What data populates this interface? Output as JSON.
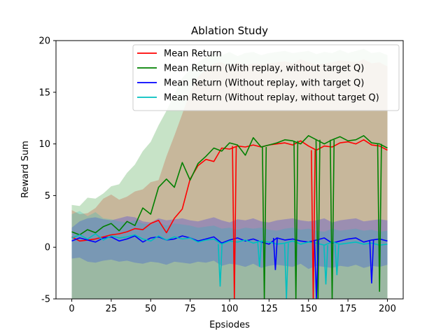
{
  "chart_data": {
    "type": "line",
    "title": "Ablation Study",
    "xlabel": "Epsiodes",
    "ylabel": "Reward Sum",
    "xlim": [
      -10,
      210
    ],
    "ylim": [
      -5,
      20
    ],
    "x_ticks": [
      0,
      25,
      50,
      75,
      100,
      125,
      150,
      175,
      200
    ],
    "y_ticks": [
      -5,
      0,
      5,
      10,
      15,
      20
    ],
    "grid": false,
    "legend_position": "top-right",
    "x_start": 0,
    "x_step": 5,
    "series": [
      {
        "name": "Mean Return",
        "color": "#ff0000",
        "band_color": "#ff0000",
        "values": [
          1.0,
          0.6,
          0.7,
          0.8,
          1.0,
          1.2,
          1.3,
          1.5,
          1.8,
          1.7,
          2.3,
          2.6,
          1.4,
          2.8,
          3.7,
          6.6,
          7.9,
          8.5,
          8.3,
          9.6,
          9.5,
          9.8,
          9.7,
          9.9,
          9.7,
          9.9,
          10.0,
          10.1,
          9.9,
          10.3,
          9.8,
          9.4,
          9.8,
          9.7,
          10.1,
          10.2,
          10.0,
          10.4,
          9.9,
          9.8,
          9.4
        ],
        "upper": [
          3.6,
          3.2,
          3.3,
          3.8,
          4.7,
          5.1,
          4.6,
          4.9,
          5.4,
          5.6,
          6.3,
          6.5,
          8.8,
          10.8,
          12.9,
          15.0,
          16.5,
          17.2,
          17.8,
          17.9,
          17.5,
          17.9,
          17.6,
          17.8,
          17.7,
          17.8,
          17.9,
          18.0,
          17.8,
          18.2,
          17.9,
          17.7,
          17.8,
          17.9,
          18.1,
          18.0,
          17.9,
          18.2,
          17.8,
          17.9,
          17.5
        ],
        "lower": [
          -5.0,
          -5.0,
          -5.0,
          -5.0,
          -5.0,
          -5.0,
          -5.0,
          -5.0,
          -5.0,
          -5.0,
          -5.0,
          -5.0,
          -5.0,
          -5.0,
          -5.0,
          -5.0,
          -5.0,
          -5.0,
          -5.0,
          -5.0,
          -5.0,
          -5.0,
          -5.0,
          -5.0,
          -5.0,
          -5.0,
          -5.0,
          -5.0,
          -5.0,
          -5.0,
          -5.0,
          -5.0,
          -5.0,
          -5.0,
          -5.0,
          -5.0,
          -5.0,
          -5.0,
          -5.0,
          -5.0,
          -5.0
        ]
      },
      {
        "name": "Mean Return (With replay, without target Q)",
        "color": "#008000",
        "band_color": "#008000",
        "values": [
          1.5,
          1.2,
          1.7,
          1.4,
          2.0,
          2.3,
          1.6,
          2.5,
          2.1,
          3.8,
          3.2,
          5.8,
          6.6,
          5.8,
          8.2,
          6.5,
          8.1,
          8.8,
          9.6,
          9.3,
          10.1,
          9.9,
          8.9,
          10.6,
          9.7,
          9.9,
          10.1,
          10.4,
          10.3,
          10.0,
          10.8,
          10.4,
          10.0,
          10.4,
          10.7,
          10.3,
          10.4,
          10.8,
          10.1,
          10.0,
          9.6
        ],
        "upper": [
          4.1,
          4.0,
          4.8,
          4.7,
          5.2,
          5.9,
          6.1,
          7.2,
          8.0,
          9.3,
          10.2,
          11.8,
          13.2,
          14.8,
          16.4,
          17.2,
          17.9,
          18.4,
          18.7,
          18.6,
          18.9,
          18.5,
          18.8,
          18.9,
          18.6,
          18.8,
          18.9,
          19.0,
          18.8,
          18.9,
          19.0,
          18.7,
          18.9,
          18.8,
          19.1,
          18.8,
          19.0,
          19.2,
          18.8,
          18.9,
          18.6
        ],
        "lower": [
          -5.0,
          -5.0,
          -5.0,
          -5.0,
          -5.0,
          -5.0,
          -5.0,
          -5.0,
          -5.0,
          -5.0,
          -5.0,
          -5.0,
          -5.0,
          -5.0,
          -5.0,
          -5.0,
          -5.0,
          -5.0,
          -5.0,
          -5.0,
          -5.0,
          -5.0,
          -5.0,
          -5.0,
          -5.0,
          -5.0,
          -5.0,
          -5.0,
          -5.0,
          -5.0,
          -5.0,
          -5.0,
          -5.0,
          -5.0,
          -5.0,
          -5.0,
          -5.0,
          -5.0,
          -5.0,
          -5.0,
          -5.0
        ]
      },
      {
        "name": "Mean Return (Without replay, with target Q)",
        "color": "#0000ff",
        "band_color": "#0000ff",
        "values": [
          0.6,
          0.9,
          0.7,
          0.5,
          0.9,
          1.0,
          0.6,
          0.8,
          1.1,
          0.5,
          0.9,
          1.0,
          0.7,
          0.8,
          1.1,
          0.9,
          0.6,
          0.8,
          1.0,
          0.4,
          0.7,
          0.9,
          0.6,
          0.8,
          0.5,
          0.3,
          0.9,
          0.7,
          0.8,
          0.6,
          0.5,
          0.7,
          0.9,
          0.4,
          0.6,
          0.8,
          0.9,
          0.5,
          0.7,
          0.8,
          0.6
        ],
        "upper": [
          1.9,
          2.5,
          2.8,
          2.9,
          2.7,
          2.6,
          2.8,
          3.0,
          2.9,
          2.5,
          2.4,
          2.8,
          2.6,
          2.7,
          2.8,
          2.6,
          2.5,
          2.7,
          2.9,
          2.6,
          2.4,
          2.7,
          2.6,
          2.8,
          2.5,
          2.4,
          2.6,
          2.7,
          2.8,
          2.6,
          2.5,
          2.6,
          2.8,
          2.4,
          2.6,
          2.7,
          2.8,
          2.5,
          2.6,
          2.7,
          2.6
        ],
        "lower": [
          -1.1,
          -1.0,
          -1.4,
          -1.5,
          -1.3,
          -1.2,
          -1.4,
          -1.3,
          -1.5,
          -1.6,
          -1.4,
          -1.5,
          -1.7,
          -1.4,
          -1.5,
          -1.6,
          -1.4,
          -1.5,
          -1.3,
          -1.8,
          -1.6,
          -1.7,
          -1.9,
          -1.6,
          -2.0,
          -1.8,
          -1.7,
          -1.8,
          -1.9,
          -1.6,
          -2.1,
          -1.8,
          -1.9,
          -2.0,
          -1.8,
          -1.9,
          -1.7,
          -2.0,
          -1.8,
          -1.9,
          -1.7
        ]
      },
      {
        "name": "Mean Return (Without replay, without target Q)",
        "color": "#00bfbf",
        "band_color": "#00bfbf",
        "values": [
          0.9,
          1.2,
          0.8,
          1.3,
          0.7,
          1.1,
          0.9,
          1.0,
          1.2,
          0.8,
          0.6,
          1.1,
          0.7,
          1.0,
          0.8,
          0.9,
          0.5,
          0.7,
          0.8,
          0.3,
          0.6,
          0.5,
          0.7,
          0.4,
          0.6,
          0.5,
          0.3,
          0.4,
          0.6,
          0.3,
          0.5,
          0.4,
          0.2,
          0.5,
          0.3,
          0.4,
          0.5,
          0.3,
          0.4,
          0.2,
          0.3
        ],
        "upper": [
          3.2,
          3.5,
          3.0,
          3.4,
          2.8,
          2.7,
          2.5,
          2.4,
          2.6,
          2.3,
          2.2,
          2.4,
          2.1,
          2.3,
          2.2,
          2.1,
          1.9,
          2.0,
          2.1,
          1.8,
          1.9,
          1.7,
          1.9,
          1.8,
          1.9,
          1.7,
          1.6,
          1.8,
          1.9,
          1.7,
          1.8,
          1.6,
          1.5,
          1.8,
          1.6,
          1.7,
          1.8,
          1.6,
          1.7,
          1.5,
          1.6
        ],
        "lower": [
          -5.0,
          -5.0,
          -5.0,
          -5.0,
          -5.0,
          -5.0,
          -5.0,
          -5.0,
          -5.0,
          -5.0,
          -5.0,
          -5.0,
          -5.0,
          -5.0,
          -5.0,
          -5.0,
          -5.0,
          -5.0,
          -5.0,
          -5.0,
          -5.0,
          -5.0,
          -5.0,
          -5.0,
          -5.0,
          -5.0,
          -5.0,
          -5.0,
          -5.0,
          -5.0,
          -5.0,
          -5.0,
          -5.0,
          -5.0,
          -5.0,
          -5.0,
          -5.0,
          -5.0,
          -5.0,
          -5.0,
          -5.0
        ]
      }
    ],
    "drops": [
      {
        "series": 1,
        "x": 122,
        "y": -5
      },
      {
        "series": 1,
        "x": 142,
        "y": -5
      },
      {
        "series": 1,
        "x": 156,
        "y": -5
      },
      {
        "series": 1,
        "x": 165,
        "y": -5
      },
      {
        "series": 1,
        "x": 195,
        "y": -4.3
      },
      {
        "series": 0,
        "x": 103,
        "y": -5
      },
      {
        "series": 0,
        "x": 153,
        "y": -5
      },
      {
        "series": 2,
        "x": 155,
        "y": -5
      },
      {
        "series": 2,
        "x": 129,
        "y": -2.2
      },
      {
        "series": 2,
        "x": 190,
        "y": -3.5
      },
      {
        "series": 3,
        "x": 94,
        "y": -3.8
      },
      {
        "series": 3,
        "x": 119,
        "y": -1.9
      },
      {
        "series": 3,
        "x": 136,
        "y": -5
      },
      {
        "series": 3,
        "x": 161,
        "y": -3.6
      },
      {
        "series": 3,
        "x": 168,
        "y": -2.7
      }
    ]
  }
}
